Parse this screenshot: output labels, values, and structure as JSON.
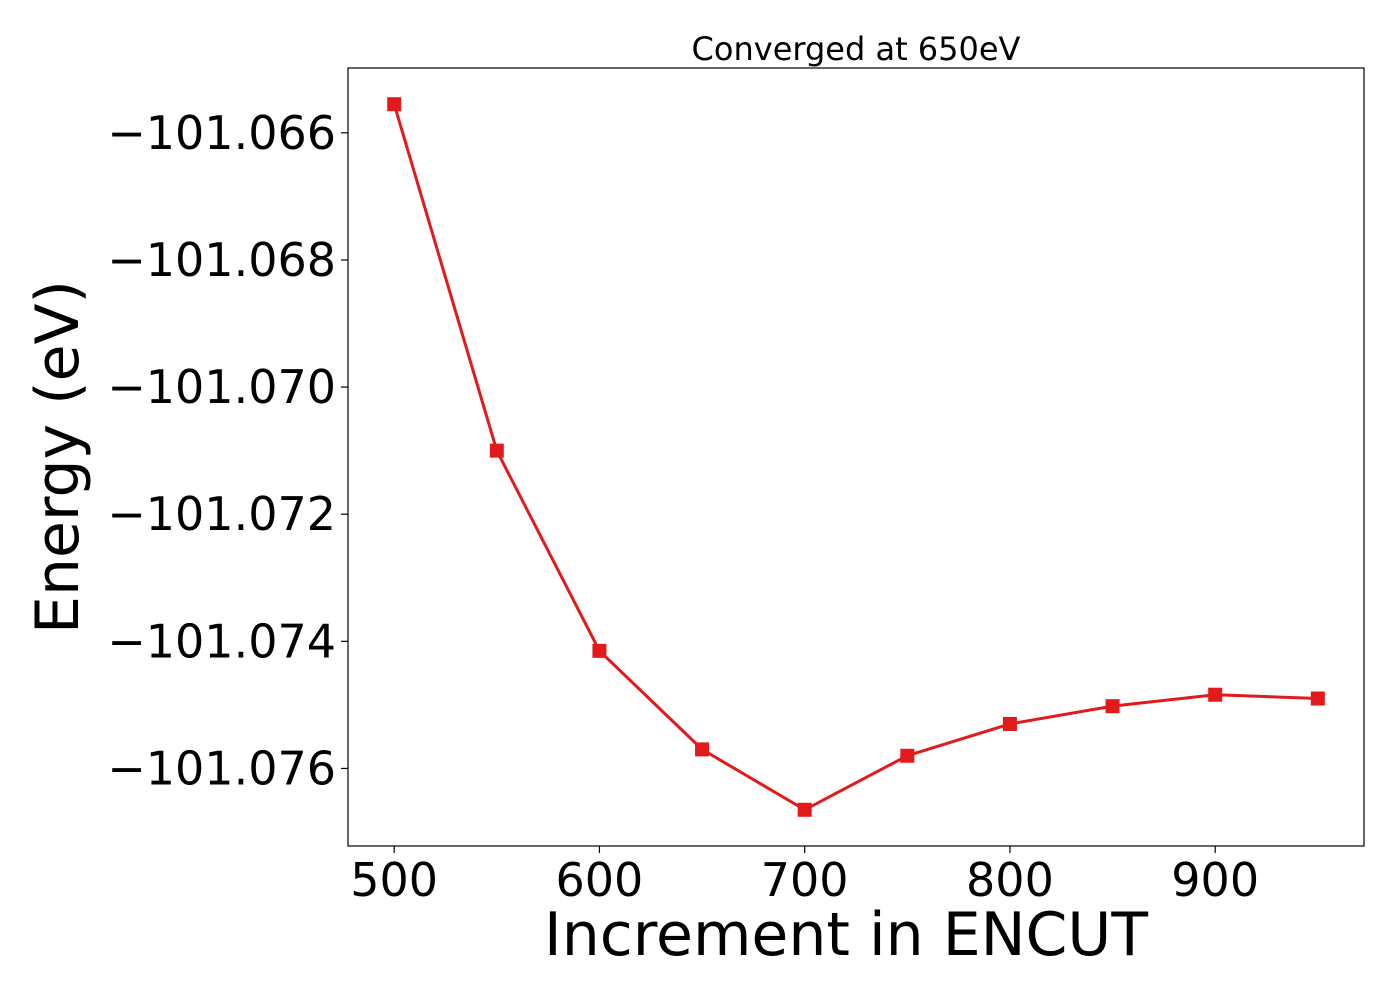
{
  "chart_data": {
    "type": "line",
    "title": "Converged at 650eV",
    "xlabel": "Increment in ENCUT",
    "ylabel": "Energy (eV)",
    "x": [
      500,
      550,
      600,
      650,
      700,
      750,
      800,
      850,
      900,
      950
    ],
    "series": [
      {
        "values": [
          -101.06555,
          -101.071,
          -101.07415,
          -101.0757,
          -101.07665,
          -101.0758,
          -101.0753,
          -101.07502,
          -101.07484,
          -101.0749
        ],
        "color": "#e31a1c",
        "marker": "square"
      }
    ],
    "xlim": [
      477.5,
      972.5
    ],
    "ylim": [
      -101.07722,
      -101.06498
    ],
    "xticks": [
      500,
      600,
      700,
      800,
      900
    ],
    "xtick_labels": [
      "500",
      "600",
      "700",
      "800",
      "900"
    ],
    "yticks": [
      -101.066,
      -101.068,
      -101.07,
      -101.072,
      -101.074,
      -101.076
    ],
    "ytick_labels": [
      "−101.066",
      "−101.068",
      "−101.070",
      "−101.072",
      "−101.074",
      "−101.076"
    ],
    "grid": false,
    "legend": "none"
  }
}
